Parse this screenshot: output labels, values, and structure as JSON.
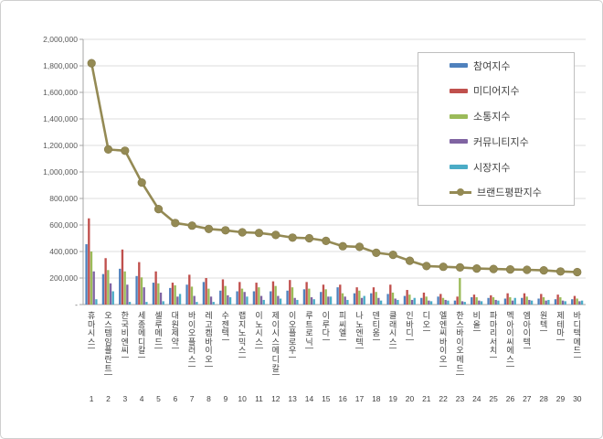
{
  "chart_data": {
    "type": "bar",
    "title": "",
    "categories": [
      "휴마시스",
      "오스템임플란트",
      "한국비엔씨",
      "세종메디칼",
      "셀루메드",
      "대원제약",
      "바이오플러스",
      "레고켐바이오",
      "수젠텍",
      "랩지노믹스",
      "이노시스",
      "제이시스메디칼",
      "이오플로우",
      "루트로닉",
      "이루다",
      "피씨엘",
      "나노엔텍",
      "덴티움",
      "클래시스",
      "인바디",
      "디오",
      "엘엔씨바이오",
      "한스바이오메드",
      "비올",
      "파마리서치",
      "멕아이씨에스",
      "엠아이텍",
      "원텍",
      "제테마",
      "바디텍메드"
    ],
    "ranks": [
      "1",
      "2",
      "3",
      "4",
      "5",
      "6",
      "7",
      "8",
      "9",
      "10",
      "11",
      "12",
      "13",
      "14",
      "15",
      "16",
      "17",
      "18",
      "19",
      "20",
      "21",
      "22",
      "23",
      "24",
      "25",
      "26",
      "27",
      "28",
      "29",
      "30"
    ],
    "series": [
      {
        "name": "참여지수",
        "color": "#4F81BD",
        "values": [
          455000,
          230000,
          270000,
          215000,
          165000,
          125000,
          150000,
          170000,
          105000,
          100000,
          100000,
          100000,
          105000,
          115000,
          95000,
          130000,
          85000,
          85000,
          80000,
          65000,
          50000,
          60000,
          30000,
          55000,
          50000,
          45000,
          50000,
          45000,
          40000,
          40000
        ]
      },
      {
        "name": "미디어지수",
        "color": "#C0504D",
        "values": [
          650000,
          350000,
          415000,
          320000,
          250000,
          165000,
          225000,
          200000,
          190000,
          170000,
          165000,
          175000,
          185000,
          170000,
          150000,
          150000,
          130000,
          130000,
          150000,
          110000,
          90000,
          80000,
          60000,
          75000,
          70000,
          85000,
          85000,
          80000,
          75000,
          65000
        ]
      },
      {
        "name": "소통지수",
        "color": "#9BBB59",
        "values": [
          400000,
          260000,
          250000,
          205000,
          160000,
          145000,
          135000,
          120000,
          140000,
          120000,
          130000,
          140000,
          130000,
          120000,
          115000,
          85000,
          105000,
          95000,
          90000,
          75000,
          60000,
          50000,
          200000,
          55000,
          55000,
          55000,
          60000,
          55000,
          55000,
          45000
        ]
      },
      {
        "name": "커뮤니티지수",
        "color": "#8064A2",
        "values": [
          250000,
          160000,
          150000,
          130000,
          90000,
          60000,
          65000,
          60000,
          70000,
          95000,
          65000,
          65000,
          50000,
          55000,
          60000,
          60000,
          50000,
          50000,
          45000,
          35000,
          30000,
          35000,
          25000,
          30000,
          35000,
          30000,
          35000,
          30000,
          30000,
          25000
        ]
      },
      {
        "name": "시장지수",
        "color": "#4BACC6",
        "values": [
          40000,
          100000,
          20000,
          20000,
          25000,
          80000,
          20000,
          20000,
          55000,
          60000,
          35000,
          45000,
          35000,
          40000,
          60000,
          35000,
          65000,
          30000,
          35000,
          50000,
          25000,
          30000,
          20000,
          25000,
          30000,
          50000,
          30000,
          35000,
          25000,
          30000
        ]
      }
    ],
    "line_series": {
      "name": "브랜드평판지수",
      "color": "#948A54",
      "values": [
        1820000,
        1170000,
        1160000,
        920000,
        720000,
        615000,
        595000,
        570000,
        560000,
        545000,
        540000,
        525000,
        505000,
        500000,
        480000,
        440000,
        435000,
        390000,
        375000,
        330000,
        290000,
        285000,
        280000,
        272000,
        268000,
        265000,
        262000,
        258000,
        250000,
        245000
      ]
    },
    "y_axis": {
      "min": 0,
      "max": 2000000,
      "step": 200000,
      "tick_labels": [
        "2,000,000",
        "1,800,000",
        "1,600,000",
        "1,400,000",
        "1,200,000",
        "1,000,000",
        "800,000",
        "600,000",
        "400,000",
        "200,000",
        "-"
      ]
    },
    "legend_position": "top-right",
    "grid": true,
    "grid_color": "#DCDCDC",
    "axis_color": "#A6A6A6"
  }
}
